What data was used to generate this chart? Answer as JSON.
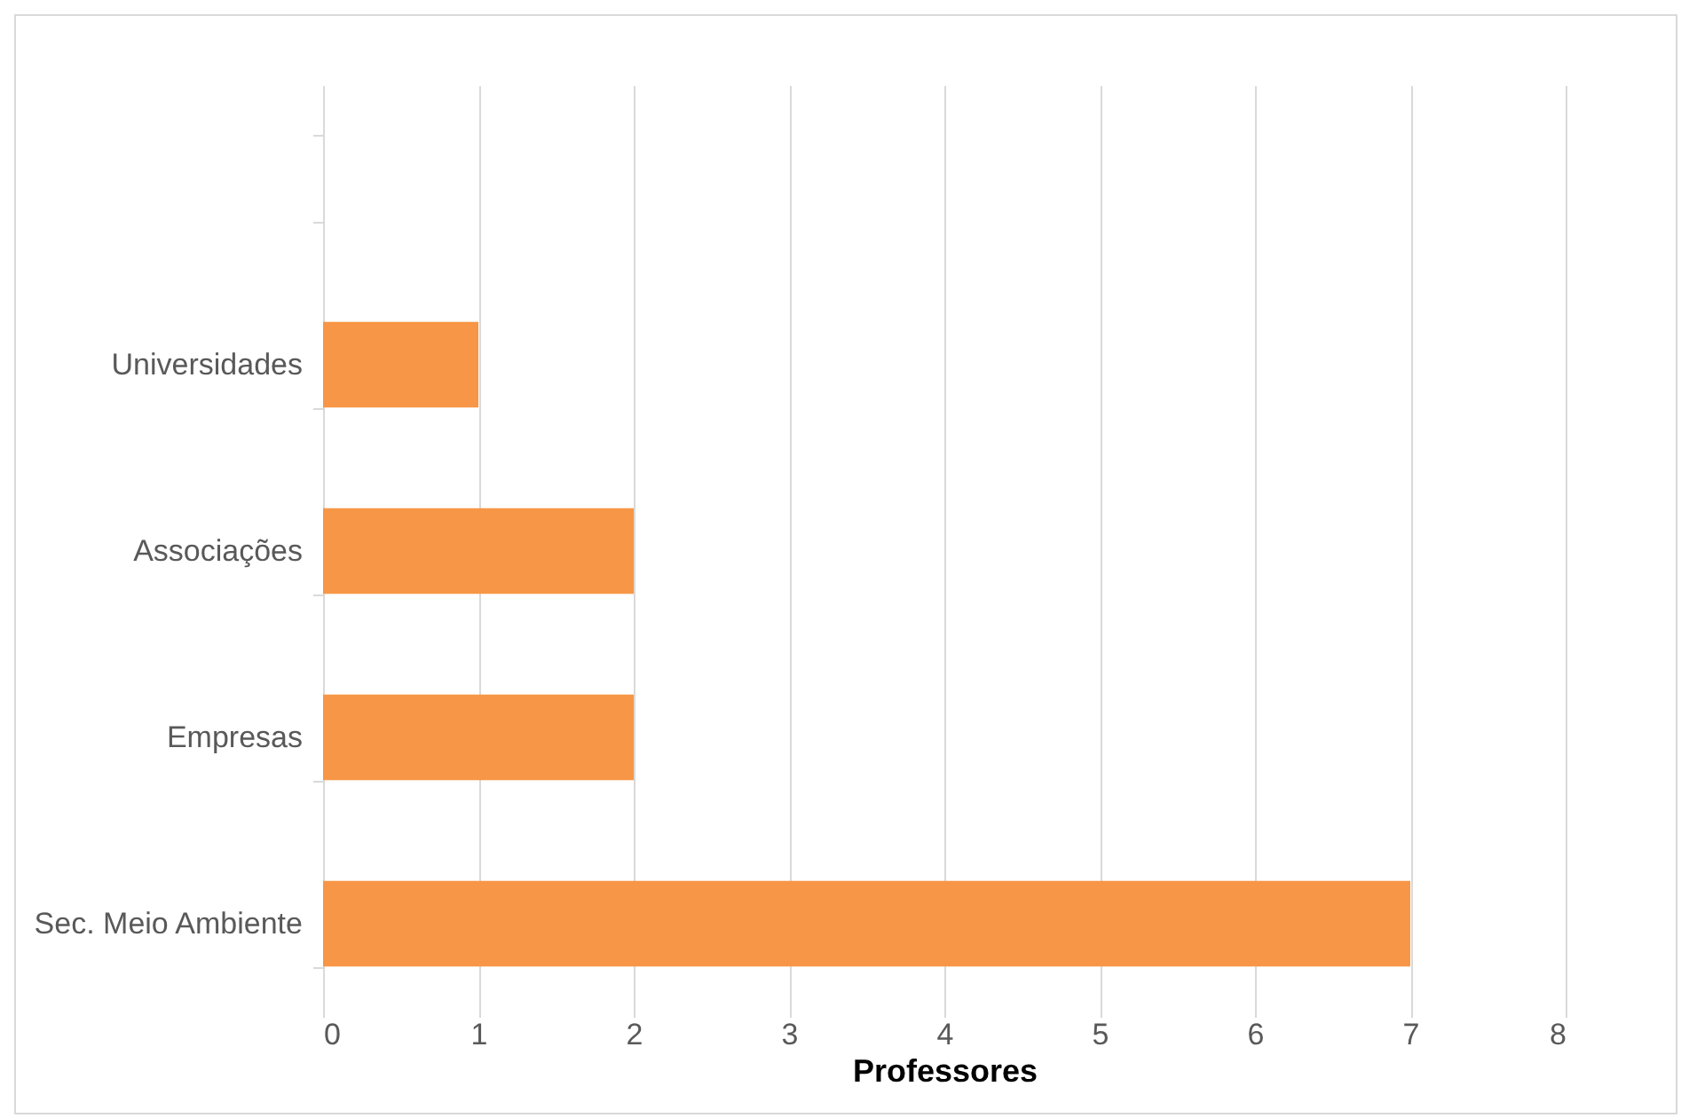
{
  "chart_data": {
    "type": "bar",
    "orientation": "horizontal",
    "categories": [
      null,
      "Universidades",
      "Associações",
      "Empresas",
      "Sec. Meio Ambiente"
    ],
    "values": [
      null,
      1,
      2,
      2,
      7
    ],
    "color": "#f79646",
    "xlim": [
      0,
      8
    ],
    "xticks": [
      0,
      1,
      2,
      3,
      4,
      5,
      6,
      7,
      8
    ],
    "xlabel": "Professores",
    "grid": "x"
  }
}
